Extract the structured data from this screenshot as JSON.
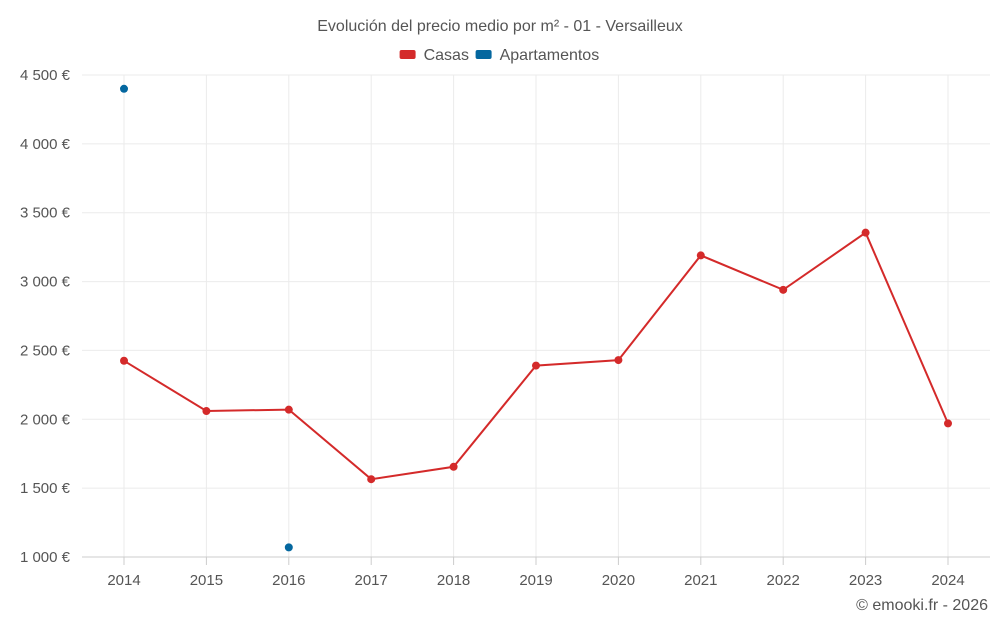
{
  "chart_data": {
    "type": "line",
    "title": "Evolución del precio medio por m² - 01 - Versailleux",
    "categories": [
      "2014",
      "2015",
      "2016",
      "2017",
      "2018",
      "2019",
      "2020",
      "2021",
      "2022",
      "2023",
      "2024"
    ],
    "series": [
      {
        "name": "Casas",
        "color": "#d42a2a",
        "values": [
          2425,
          2060,
          2070,
          1565,
          1655,
          2390,
          2430,
          3190,
          2940,
          3355,
          1970
        ]
      },
      {
        "name": "Apartamentos",
        "color": "#04679f",
        "values": [
          4400,
          null,
          1070,
          null,
          null,
          null,
          null,
          null,
          null,
          null,
          null
        ]
      }
    ],
    "ylim": [
      1000,
      4500
    ],
    "yticks": [
      1000,
      1500,
      2000,
      2500,
      3000,
      3500,
      4000,
      4500
    ],
    "ytick_labels": [
      "1 000 €",
      "1 500 €",
      "2 000 €",
      "2 500 €",
      "3 000 €",
      "3 500 €",
      "4 000 €",
      "4 500 €"
    ],
    "grid": true,
    "legend": "top-center"
  },
  "credit": "© emooki.fr - 2026"
}
